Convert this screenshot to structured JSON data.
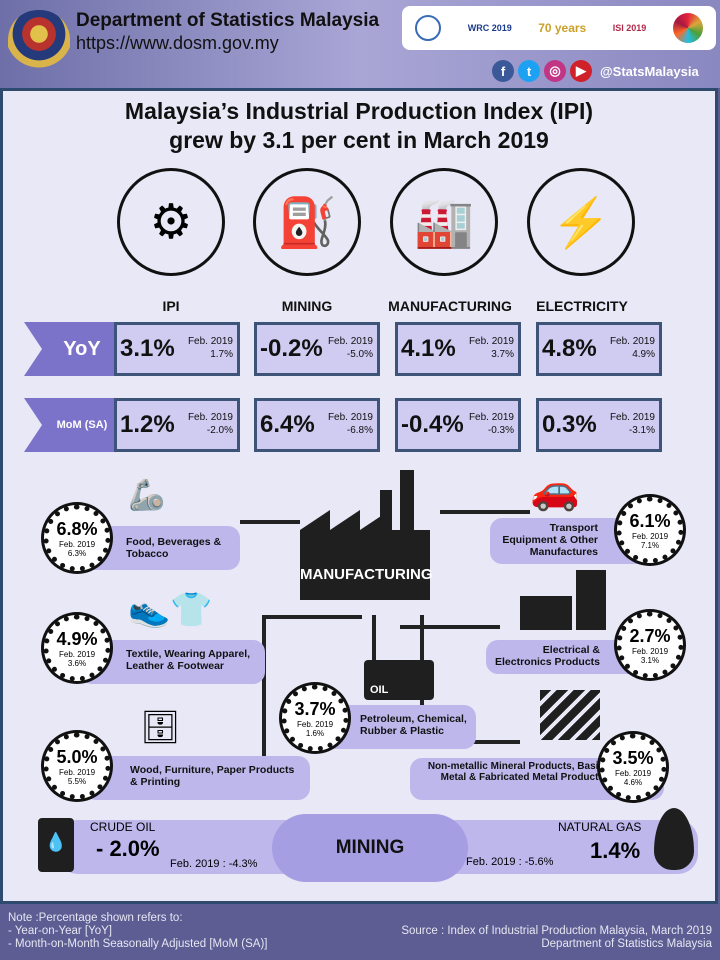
{
  "header": {
    "department": "Department of Statistics Malaysia",
    "url": "https://www.dosm.gov.my",
    "social_handle": "@StatsMalaysia",
    "social_icons": [
      "facebook-icon",
      "twitter-icon",
      "instagram-icon",
      "youtube-icon"
    ],
    "logos": [
      "WRC 2019",
      "70 years",
      "ISI 2019"
    ]
  },
  "title": {
    "line1": "Malaysia’s Industrial Production Index (IPI)",
    "line2": "grew by 3.1 per cent in March 2019"
  },
  "categories": [
    {
      "label": "IPI",
      "icon": "laptop-gear-icon"
    },
    {
      "label": "MINING",
      "icon": "oil-pump-icon"
    },
    {
      "label": "MANUFACTURING",
      "icon": "factory-icon"
    },
    {
      "label": "ELECTRICITY",
      "icon": "lightning-icon"
    }
  ],
  "rows": [
    {
      "label": "YoY",
      "cells": [
        {
          "value": "3.1%",
          "prev_label": "Feb. 2019",
          "prev": "1.7%"
        },
        {
          "value": "-0.2%",
          "prev_label": "Feb. 2019",
          "prev": "-5.0%"
        },
        {
          "value": "4.1%",
          "prev_label": "Feb. 2019",
          "prev": "3.7%"
        },
        {
          "value": "4.8%",
          "prev_label": "Feb. 2019",
          "prev": "4.9%"
        }
      ]
    },
    {
      "label": "MoM (SA)",
      "cells": [
        {
          "value": "1.2%",
          "prev_label": "Feb. 2019",
          "prev": "-2.0%"
        },
        {
          "value": "6.4%",
          "prev_label": "Feb. 2019",
          "prev": "-6.8%"
        },
        {
          "value": "-0.4%",
          "prev_label": "Feb. 2019",
          "prev": "-0.3%"
        },
        {
          "value": "0.3%",
          "prev_label": "Feb. 2019",
          "prev": "-3.1%"
        }
      ]
    }
  ],
  "manufacturing": {
    "label": "MANUFACTURING",
    "subsectors": [
      {
        "name": "Food, Beverages & Tobacco",
        "value": "6.8%",
        "prev_label": "Feb. 2019",
        "prev": "6.3%"
      },
      {
        "name": "Textile, Wearing Apparel, Leather & Footwear",
        "value": "4.9%",
        "prev_label": "Feb. 2019",
        "prev": "3.6%"
      },
      {
        "name": "Wood, Furniture, Paper Products & Printing",
        "value": "5.0%",
        "prev_label": "Feb. 2019",
        "prev": "5.5%"
      },
      {
        "name": "Petroleum, Chemical, Rubber & Plastic",
        "value": "3.7%",
        "prev_label": "Feb. 2019",
        "prev": "1.6%"
      },
      {
        "name": "Transport Equipment & Other Manufactures",
        "value": "6.1%",
        "prev_label": "Feb. 2019",
        "prev": "7.1%"
      },
      {
        "name": "Electrical & Electronics Products",
        "value": "2.7%",
        "prev_label": "Feb. 2019",
        "prev": "3.1%"
      },
      {
        "name": "Non-metallic Mineral Products, Basic Metal & Fabricated Metal Products",
        "value": "3.5%",
        "prev_label": "Feb. 2019",
        "prev": "4.6%"
      }
    ]
  },
  "mining": {
    "label": "MINING",
    "crude_oil": {
      "label": "CRUDE OIL",
      "value": "- 2.0%",
      "prev": "Feb. 2019 : -4.3%"
    },
    "natural_gas": {
      "label": "NATURAL GAS",
      "value": "1.4%",
      "prev": "Feb. 2019 : -5.6%"
    }
  },
  "footer": {
    "note": "Note :Percentage shown refers to:",
    "note_yoy": "- Year-on-Year [YoY]",
    "note_mom": "- Month-on-Month  Seasonally Adjusted  [MoM (SA)]",
    "source": "Source : Index of Industrial Production Malaysia, March 2019",
    "source_org": "Department of Statistics Malaysia"
  },
  "colors": {
    "accent": "#7b73c9",
    "box": "#cfcbf1",
    "card": "#bdb7ec",
    "border": "#3d5478"
  }
}
